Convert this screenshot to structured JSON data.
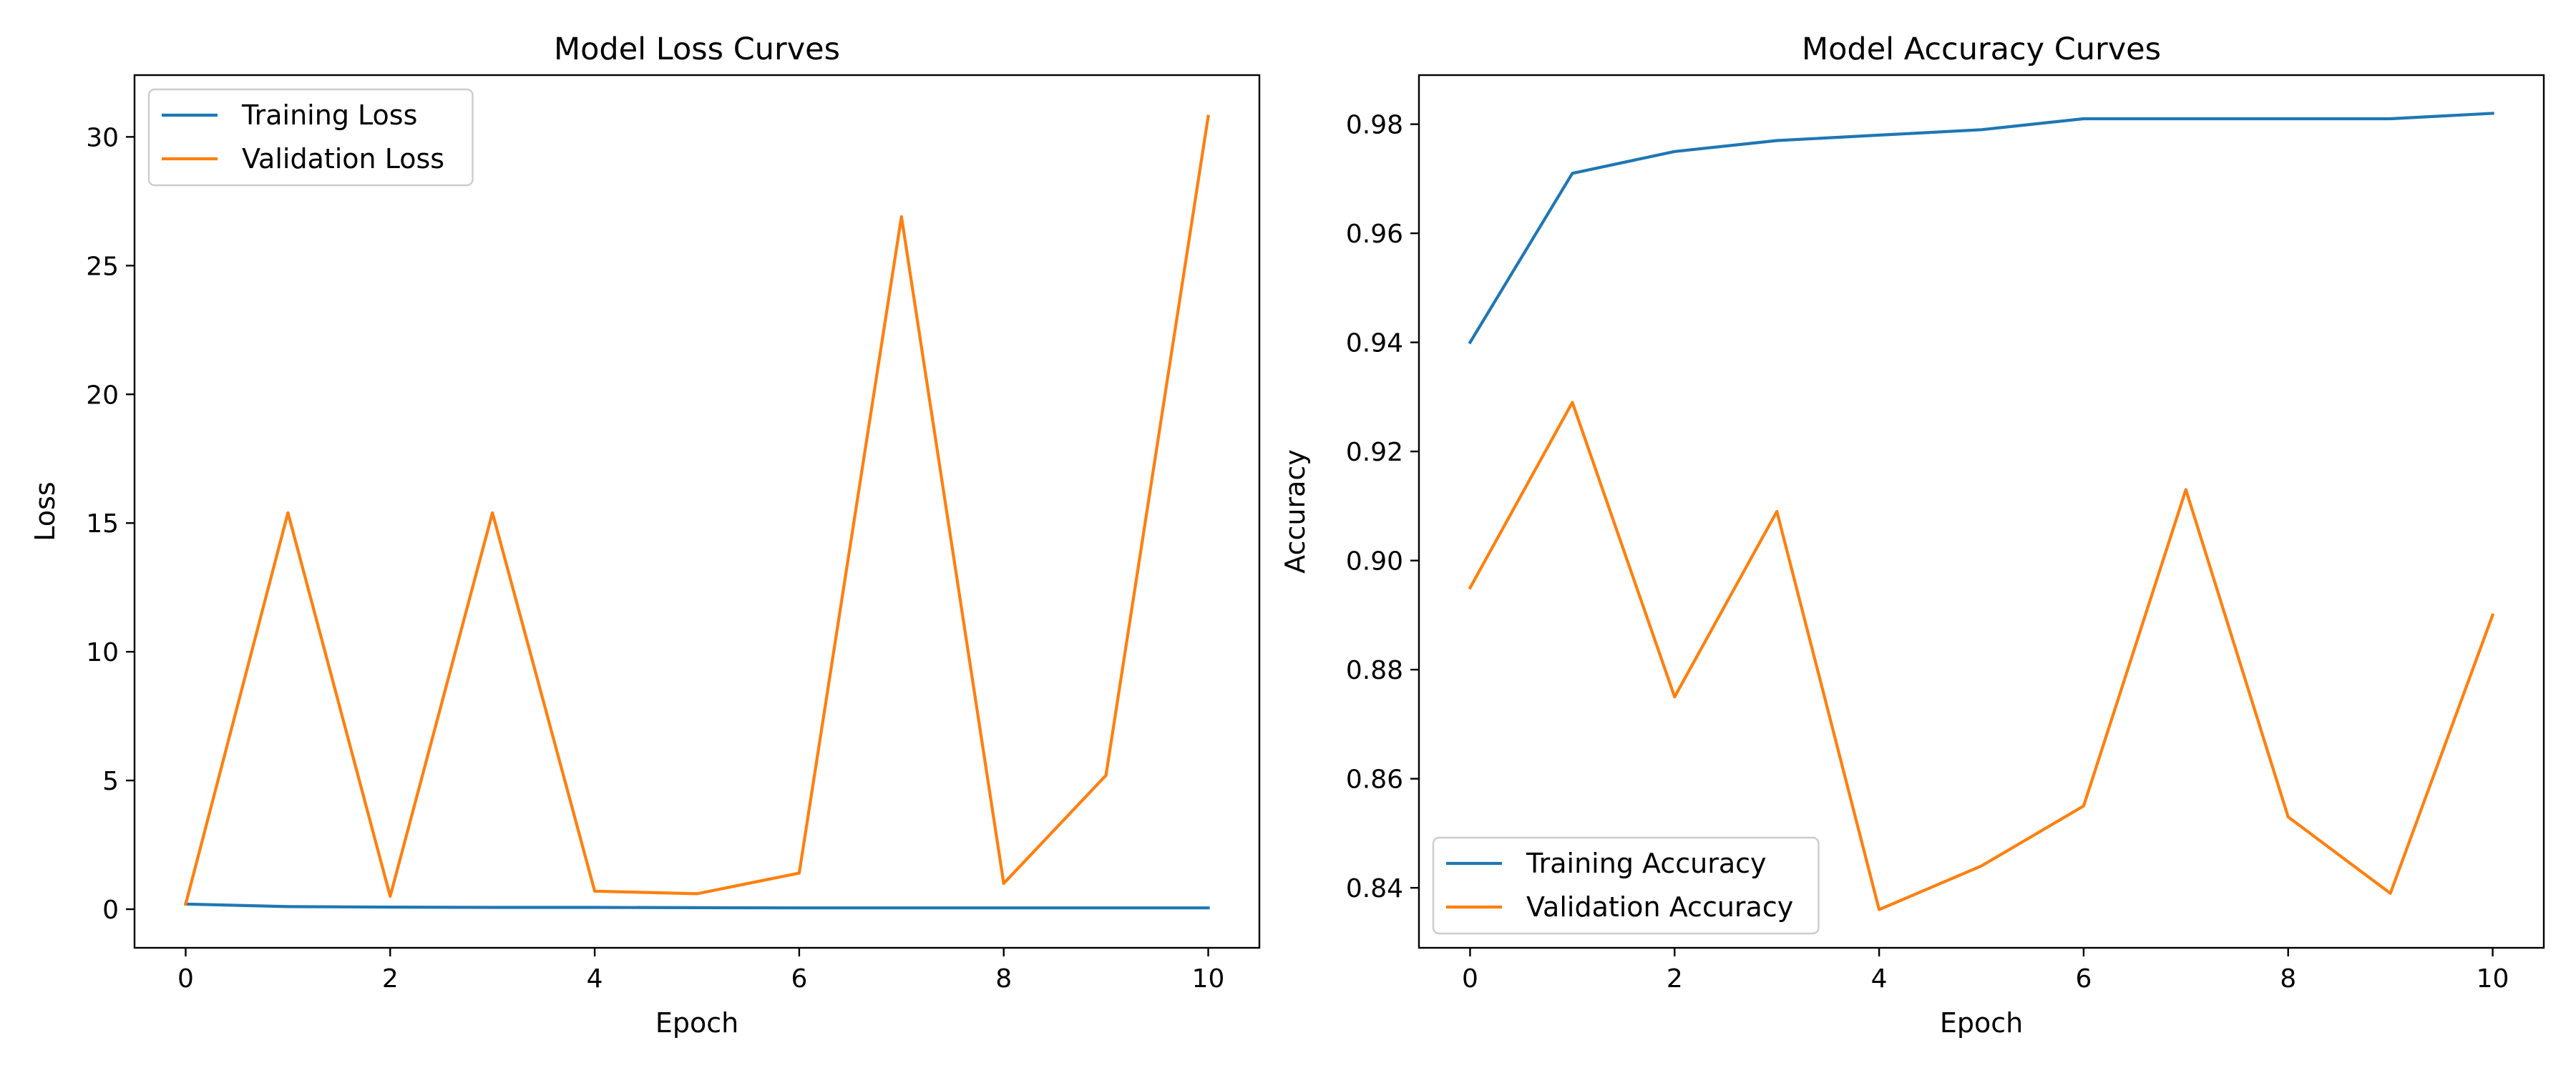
{
  "chart_data": [
    {
      "type": "line",
      "title": "Model Loss Curves",
      "xlabel": "Epoch",
      "ylabel": "Loss",
      "x": [
        0,
        1,
        2,
        3,
        4,
        5,
        6,
        7,
        8,
        9,
        10
      ],
      "xlim": [
        -0.5,
        10.5
      ],
      "ylim": [
        -1.5,
        32.4
      ],
      "xticks": [
        0,
        2,
        4,
        6,
        8,
        10
      ],
      "yticks": [
        0,
        5,
        10,
        15,
        20,
        25,
        30
      ],
      "tick_decimals": 0,
      "grid": false,
      "legend_position": "upper left",
      "series": [
        {
          "name": "Training Loss",
          "color": "#1f77b4",
          "values": [
            0.2,
            0.1,
            0.08,
            0.07,
            0.07,
            0.06,
            0.05,
            0.05,
            0.05,
            0.05,
            0.05
          ]
        },
        {
          "name": "Validation Loss",
          "color": "#ff7f0e",
          "values": [
            0.2,
            15.4,
            0.5,
            15.4,
            0.7,
            0.6,
            1.4,
            26.9,
            1.0,
            5.2,
            30.8
          ]
        }
      ]
    },
    {
      "type": "line",
      "title": "Model Accuracy Curves",
      "xlabel": "Epoch",
      "ylabel": "Accuracy",
      "x": [
        0,
        1,
        2,
        3,
        4,
        5,
        6,
        7,
        8,
        9,
        10
      ],
      "xlim": [
        -0.5,
        10.5
      ],
      "ylim": [
        0.829,
        0.989
      ],
      "xticks": [
        0,
        2,
        4,
        6,
        8,
        10
      ],
      "yticks": [
        0.84,
        0.86,
        0.88,
        0.9,
        0.92,
        0.94,
        0.96,
        0.98
      ],
      "tick_decimals": 2,
      "grid": false,
      "legend_position": "lower left",
      "series": [
        {
          "name": "Training Accuracy",
          "color": "#1f77b4",
          "values": [
            0.94,
            0.971,
            0.975,
            0.977,
            0.978,
            0.979,
            0.981,
            0.981,
            0.981,
            0.981,
            0.982
          ]
        },
        {
          "name": "Validation Accuracy",
          "color": "#ff7f0e",
          "values": [
            0.895,
            0.929,
            0.875,
            0.909,
            0.836,
            0.844,
            0.855,
            0.913,
            0.853,
            0.839,
            0.89
          ]
        }
      ]
    }
  ]
}
